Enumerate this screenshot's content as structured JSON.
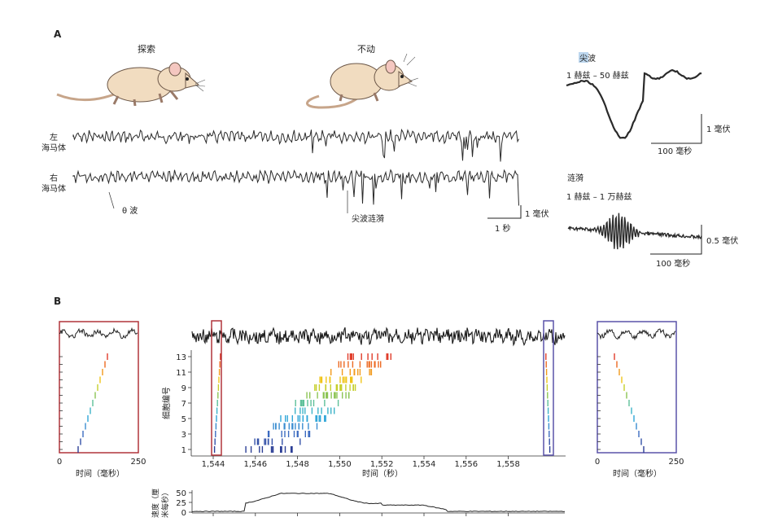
{
  "panel_a": {
    "label": "A",
    "rat_explore_label": "探索",
    "rat_still_label": "不动",
    "trace_left_label": [
      "左",
      "海马体"
    ],
    "trace_right_label": [
      "右",
      "海马体"
    ],
    "theta_label": "θ 波",
    "swr_label": "尖波涟漪",
    "scale_mv": "1 毫伏",
    "scale_s": "1 秒",
    "sharp_wave": {
      "title_hl": "尖",
      "title_rest": "波",
      "band": "1 赫兹 – 50 赫兹",
      "scale_mv": "1 毫伏",
      "scale_ms": "100 毫秒"
    },
    "ripple": {
      "title": "涟漪",
      "band": "1 赫兹 – 1 万赫兹",
      "scale_mv": "0.5 毫伏",
      "scale_ms": "100 毫秒"
    }
  },
  "panel_b": {
    "label": "B",
    "colors": {
      "left_box": "#b0343a",
      "right_box": "#5a52a8",
      "cells": [
        "#2c3f96",
        "#3552a8",
        "#3c6bc0",
        "#3a8dd0",
        "#2fa6d8",
        "#3db3c8",
        "#5ec09a",
        "#8cc454",
        "#c6cf2c",
        "#f0c419",
        "#f29a1c",
        "#ec6a22",
        "#e03c2a"
      ]
    },
    "left_inset": {
      "ticks": [
        "0",
        "250"
      ],
      "xlabel": "时间（毫秒）"
    },
    "right_inset": {
      "ticks": [
        "0",
        "250"
      ],
      "xlabel": "时间（毫秒）"
    },
    "main": {
      "ylabel": "细胞编号",
      "yticks": [
        "13",
        "11",
        "9",
        "7",
        "5",
        "3",
        "1"
      ],
      "xticks": [
        "1,544",
        "1,546",
        "1,548",
        "1,550",
        "1,552",
        "1,554",
        "1,556",
        "1,558"
      ],
      "xlabel": "时间（秒）"
    },
    "speed": {
      "ylabel": [
        "速度（厘",
        "米每秒）"
      ],
      "yticks": [
        "50",
        "25",
        "0"
      ]
    }
  }
}
